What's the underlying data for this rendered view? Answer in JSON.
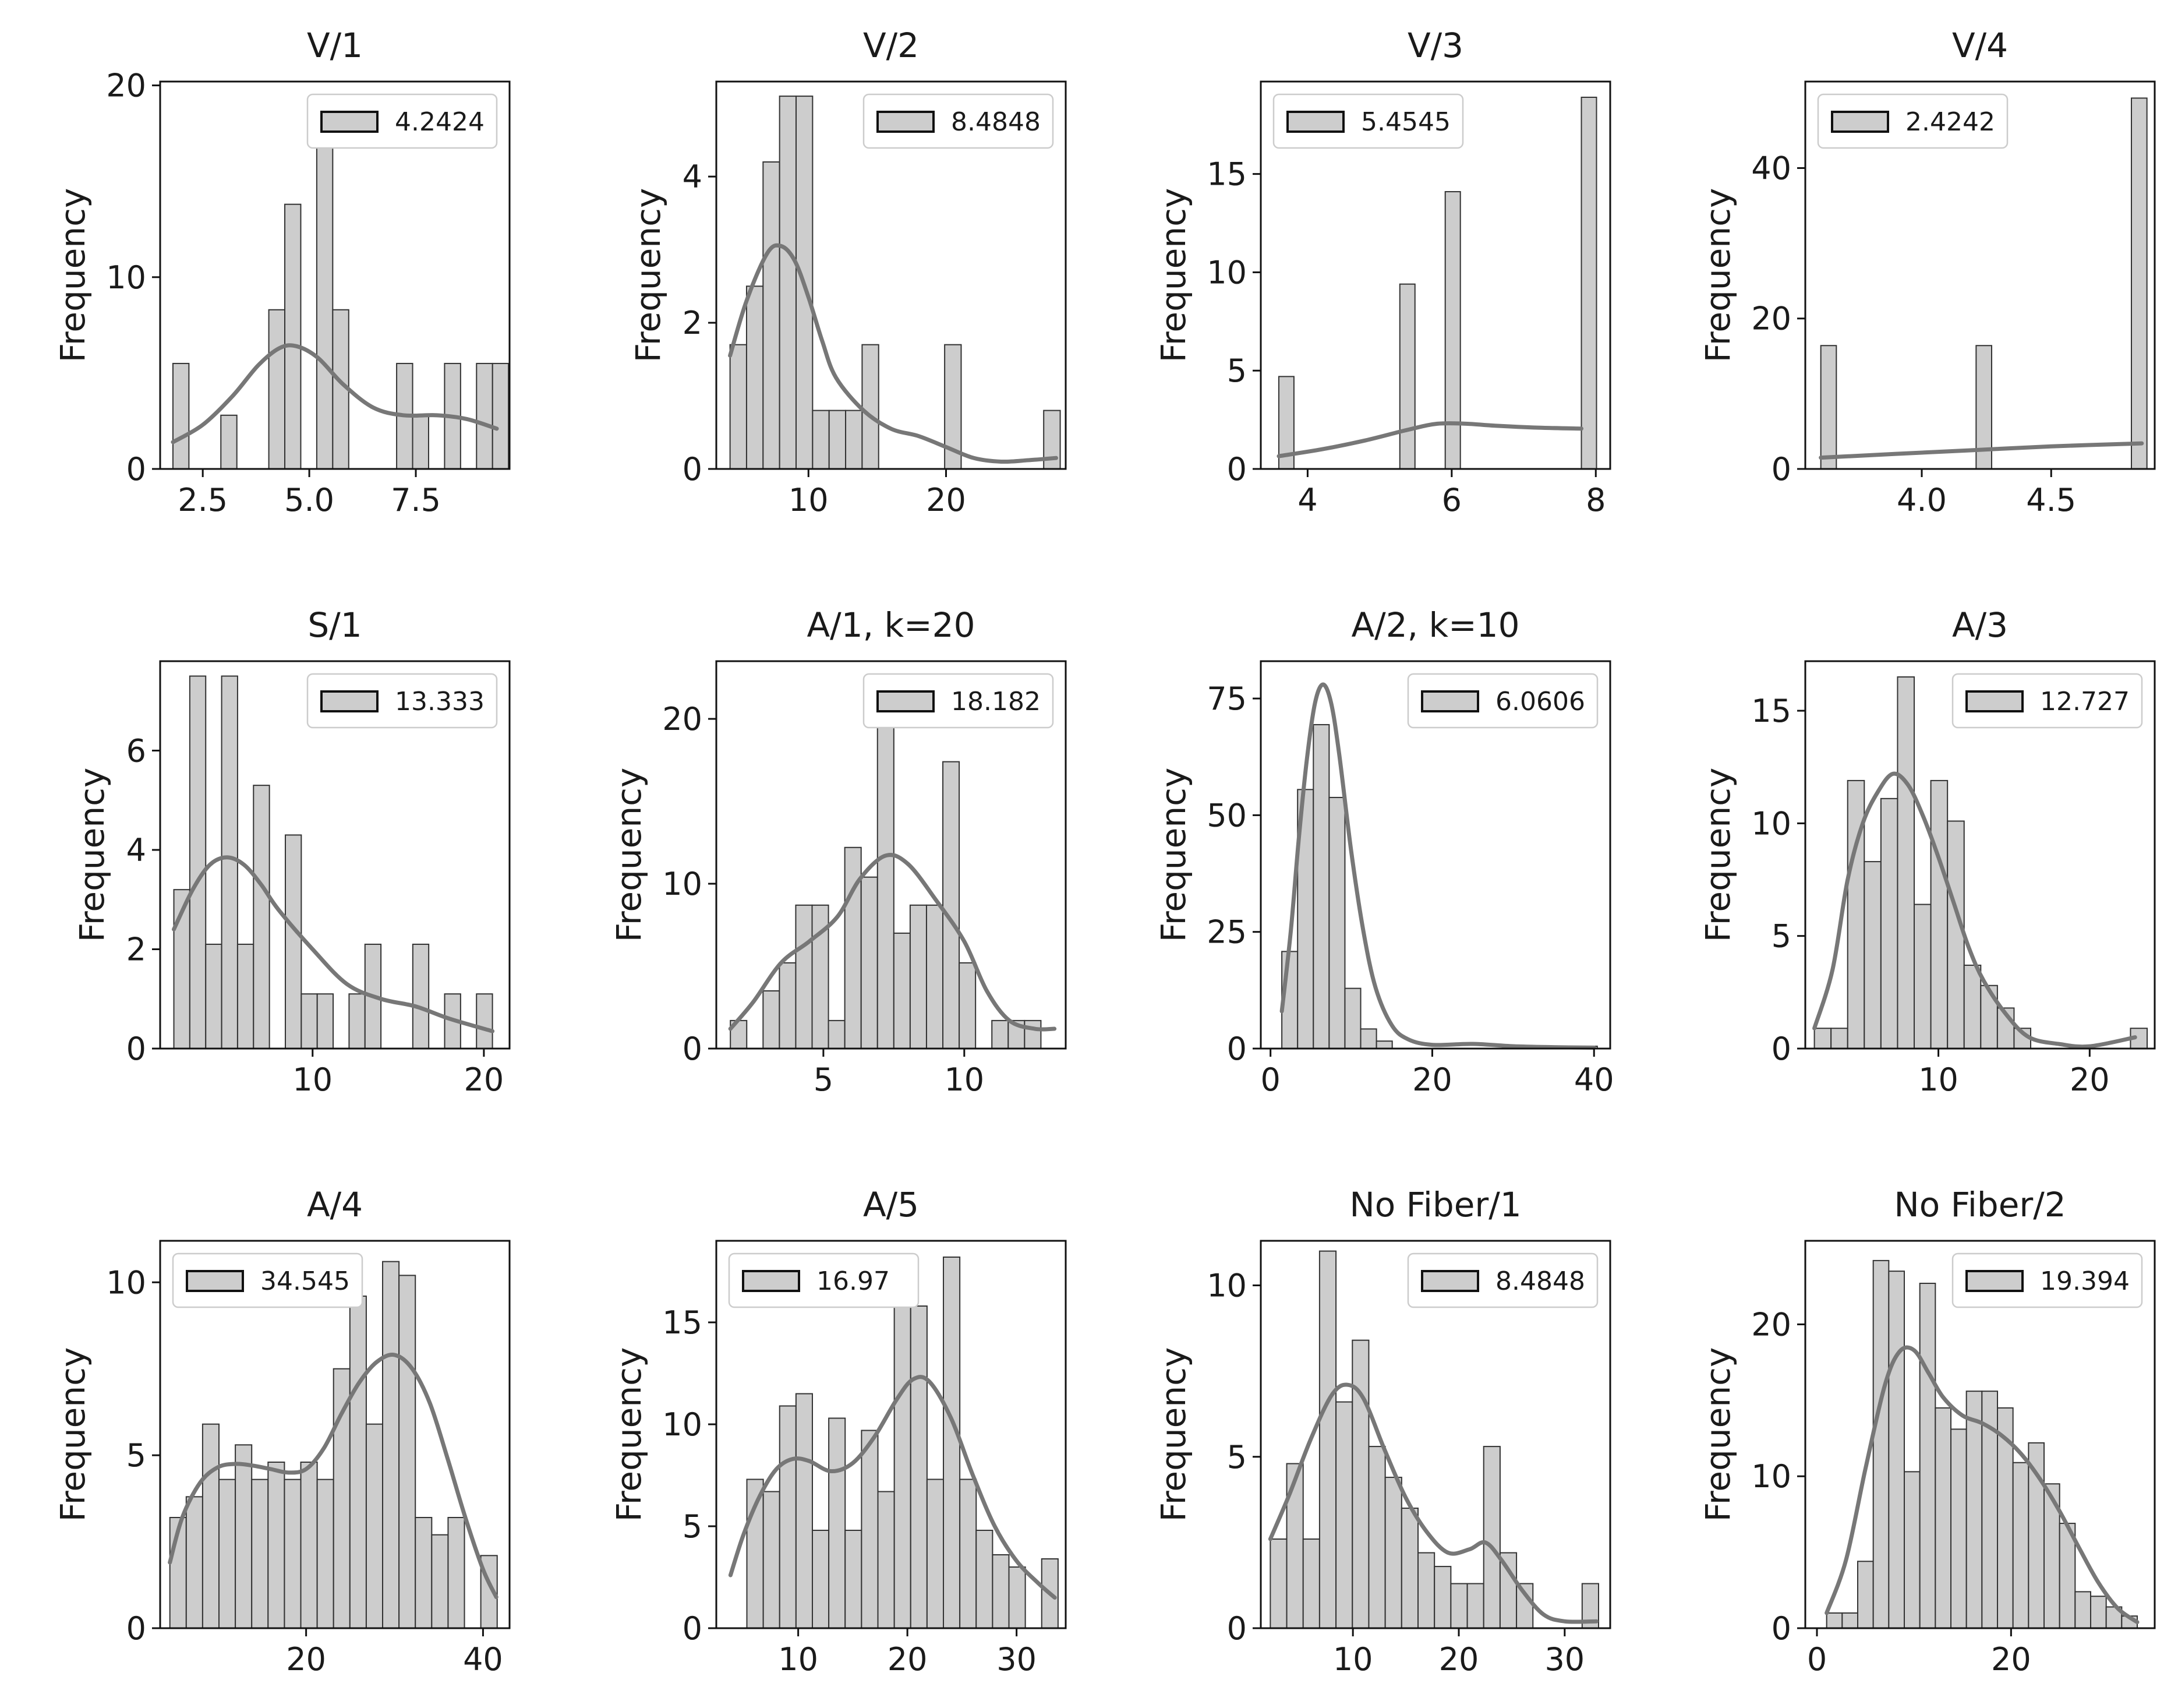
{
  "colors": {
    "bar_fill": "#cdcdcd",
    "bar_edge": "#333333",
    "kde": "#777777",
    "axis": "#111111",
    "legend_edge": "#cccccc"
  },
  "chart_data": [
    {
      "type": "bar",
      "title": "V/1",
      "xlabel": "",
      "ylabel": "Frequency",
      "xlim": [
        1.5,
        9.7
      ],
      "ylim": [
        0,
        20.2
      ],
      "xticks": [
        2.5,
        5.0,
        7.5
      ],
      "xtick_labels": [
        "2.5",
        "5.0",
        "7.5"
      ],
      "yticks": [
        0,
        10,
        20
      ],
      "ytick_labels": [
        "0",
        "10",
        "20"
      ],
      "legend_label": "4.2424",
      "legend_loc": "top-right",
      "bins": {
        "start": 1.8,
        "width": 0.375,
        "values": [
          5.5,
          0,
          0,
          2.8,
          0,
          0,
          8.3,
          13.8,
          0,
          19.3,
          8.3,
          0,
          0,
          0,
          5.5,
          2.8,
          0,
          5.5,
          0,
          5.5,
          5.5
        ]
      },
      "kde": {
        "x": [
          1.8,
          2.5,
          3.2,
          3.8,
          4.3,
          4.7,
          5.2,
          5.8,
          6.5,
          7.2,
          8.0,
          8.7,
          9.4
        ],
        "y": [
          1.4,
          2.3,
          3.8,
          5.4,
          6.3,
          6.4,
          5.8,
          4.4,
          3.2,
          2.8,
          2.8,
          2.6,
          2.1
        ]
      }
    },
    {
      "type": "bar",
      "title": "V/2",
      "xlabel": "",
      "ylabel": "Frequency",
      "xlim": [
        3.3,
        28.7
      ],
      "ylim": [
        0,
        5.3
      ],
      "xticks": [
        10,
        20
      ],
      "xtick_labels": [
        "10",
        "20"
      ],
      "yticks": [
        0,
        2,
        4
      ],
      "ytick_labels": [
        "0",
        "2",
        "4"
      ],
      "legend_label": "8.4848",
      "legend_loc": "top-right",
      "bins": {
        "start": 4.3,
        "width": 1.2,
        "values": [
          1.7,
          2.5,
          4.2,
          5.1,
          5.1,
          0.8,
          0.8,
          0.8,
          1.7,
          0,
          0,
          0,
          0,
          1.7,
          0,
          0,
          0,
          0,
          0,
          0.8
        ]
      },
      "kde": {
        "x": [
          4.3,
          5.5,
          7,
          8,
          9,
          10,
          11,
          12,
          14,
          16,
          18,
          20,
          22,
          24,
          26,
          28
        ],
        "y": [
          1.55,
          2.3,
          2.95,
          3.05,
          2.85,
          2.35,
          1.75,
          1.25,
          0.8,
          0.55,
          0.45,
          0.3,
          0.15,
          0.1,
          0.12,
          0.15
        ]
      }
    },
    {
      "type": "bar",
      "title": "V/3",
      "xlabel": "",
      "ylabel": "Frequency",
      "xlim": [
        3.35,
        8.2
      ],
      "ylim": [
        0,
        19.7
      ],
      "xticks": [
        4,
        6,
        8
      ],
      "xtick_labels": [
        "4",
        "6",
        "8"
      ],
      "yticks": [
        0,
        5,
        10,
        15
      ],
      "ytick_labels": [
        "0",
        "5",
        "10",
        "15"
      ],
      "legend_label": "5.4545",
      "legend_loc": "top-left",
      "bins": {
        "start": 3.6,
        "width": 0.21,
        "values": [
          4.7,
          0,
          0,
          0,
          0,
          0,
          0,
          0,
          9.4,
          0,
          0,
          14.1,
          0,
          0,
          0,
          0,
          0,
          0,
          0,
          0,
          18.9
        ]
      },
      "kde": {
        "x": [
          3.6,
          4.2,
          4.8,
          5.4,
          5.8,
          6.2,
          6.6,
          7.2,
          7.8
        ],
        "y": [
          0.65,
          1.0,
          1.45,
          2.0,
          2.3,
          2.3,
          2.2,
          2.1,
          2.05
        ]
      }
    },
    {
      "type": "bar",
      "title": "V/4",
      "xlabel": "",
      "ylabel": "Frequency",
      "xlim": [
        3.55,
        4.9
      ],
      "ylim": [
        0,
        51.5
      ],
      "xticks": [
        4.0,
        4.5
      ],
      "xtick_labels": [
        "4.0",
        "4.5"
      ],
      "yticks": [
        0,
        20,
        40
      ],
      "ytick_labels": [
        "0",
        "20",
        "40"
      ],
      "legend_label": "2.4242",
      "legend_loc": "top-left",
      "bins": {
        "start": 3.61,
        "width": 0.06,
        "values": [
          16.4,
          0,
          0,
          0,
          0,
          0,
          0,
          0,
          0,
          0,
          16.4,
          0,
          0,
          0,
          0,
          0,
          0,
          0,
          0,
          0,
          49.3
        ]
      },
      "kde": {
        "x": [
          3.61,
          3.9,
          4.2,
          4.5,
          4.85
        ],
        "y": [
          1.5,
          2.0,
          2.5,
          3.0,
          3.4
        ]
      }
    },
    {
      "type": "bar",
      "title": "S/1",
      "xlabel": "",
      "ylabel": "Frequency",
      "xlim": [
        1.1,
        21.5
      ],
      "ylim": [
        0,
        7.8
      ],
      "xticks": [
        10,
        20
      ],
      "xtick_labels": [
        "10",
        "20"
      ],
      "yticks": [
        0,
        2,
        4,
        6
      ],
      "ytick_labels": [
        "0",
        "2",
        "4",
        "6"
      ],
      "legend_label": "13.333",
      "legend_loc": "top-right",
      "bins": {
        "start": 1.9,
        "width": 0.93,
        "values": [
          3.2,
          7.5,
          2.1,
          7.5,
          2.1,
          5.3,
          0,
          4.3,
          1.1,
          1.1,
          0,
          1.1,
          2.1,
          0,
          0,
          2.1,
          0,
          1.1,
          0,
          1.1
        ]
      },
      "kde": {
        "x": [
          1.9,
          3,
          4,
          5,
          6,
          7,
          8,
          10,
          12,
          14,
          16,
          18,
          20.5
        ],
        "y": [
          2.4,
          3.2,
          3.7,
          3.85,
          3.7,
          3.3,
          2.8,
          2.0,
          1.3,
          1.0,
          0.85,
          0.6,
          0.35
        ]
      }
    },
    {
      "type": "bar",
      "title": "A/1, k=20",
      "xlabel": "",
      "ylabel": "Frequency",
      "xlim": [
        1.2,
        13.6
      ],
      "ylim": [
        0,
        23.5
      ],
      "xticks": [
        5,
        10
      ],
      "xtick_labels": [
        "5",
        "10"
      ],
      "yticks": [
        0,
        10,
        20
      ],
      "ytick_labels": [
        "0",
        "10",
        "20"
      ],
      "legend_label": "18.182",
      "legend_loc": "top-right",
      "bins": {
        "start": 1.7,
        "width": 0.58,
        "values": [
          1.7,
          0,
          3.5,
          5.2,
          8.7,
          8.7,
          1.7,
          12.2,
          10.4,
          20.8,
          7,
          8.7,
          8.7,
          17.4,
          5.2,
          0,
          1.7,
          1.7,
          1.7
        ]
      },
      "kde": {
        "x": [
          1.7,
          2.5,
          3.5,
          4.5,
          5.5,
          6.3,
          7.2,
          8,
          9,
          10,
          10.8,
          11.6,
          12.5,
          13.2
        ],
        "y": [
          1.2,
          2.8,
          5.2,
          6.5,
          8.0,
          10.3,
          11.7,
          11.2,
          9.0,
          6.5,
          3.5,
          1.7,
          1.2,
          1.2
        ]
      }
    },
    {
      "type": "bar",
      "title": "A/2, k=10",
      "xlabel": "",
      "ylabel": "Frequency",
      "xlim": [
        -1.2,
        42
      ],
      "ylim": [
        0,
        83
      ],
      "xticks": [
        0,
        20,
        40
      ],
      "xtick_labels": [
        "0",
        "20",
        "40"
      ],
      "yticks": [
        0,
        25,
        50,
        75
      ],
      "ytick_labels": [
        "0",
        "25",
        "50",
        "75"
      ],
      "legend_label": "6.0606",
      "legend_loc": "top-right",
      "bins": {
        "start": 1.4,
        "width": 1.95,
        "values": [
          20.8,
          55.5,
          69.4,
          53.8,
          12.9,
          4.2,
          1.6,
          0,
          0,
          0,
          0,
          0,
          0,
          0,
          0,
          0,
          0,
          0,
          0,
          0.5
        ]
      },
      "kde": {
        "x": [
          1.4,
          2.5,
          3.5,
          4.5,
          5.5,
          6.5,
          7.5,
          8.5,
          10,
          11.5,
          13,
          15,
          17,
          20,
          25,
          30,
          35,
          40
        ],
        "y": [
          8,
          25,
          45,
          62,
          74,
          78,
          74,
          63,
          42,
          25,
          13,
          5,
          2,
          0.8,
          1,
          0.5,
          0.3,
          0.2
        ]
      }
    },
    {
      "type": "bar",
      "title": "A/3",
      "xlabel": "",
      "ylabel": "Frequency",
      "xlim": [
        1.2,
        24.3
      ],
      "ylim": [
        0,
        17.2
      ],
      "xticks": [
        10,
        20
      ],
      "xtick_labels": [
        "10",
        "20"
      ],
      "yticks": [
        0,
        5,
        10,
        15
      ],
      "ytick_labels": [
        "0",
        "5",
        "10",
        "15"
      ],
      "legend_label": "12.727",
      "legend_loc": "top-right",
      "bins": {
        "start": 1.8,
        "width": 1.1,
        "values": [
          0.9,
          0.9,
          11.9,
          8.3,
          11.1,
          16.5,
          6.4,
          11.9,
          10.1,
          3.7,
          2.8,
          1.8,
          0.9,
          0,
          0,
          0,
          0,
          0,
          0,
          0.9
        ]
      },
      "kde": {
        "x": [
          1.8,
          3,
          4,
          5,
          6,
          7,
          8,
          9,
          10,
          11,
          12,
          13,
          14.5,
          16,
          18,
          20,
          23
        ],
        "y": [
          0.9,
          3.5,
          7.5,
          10,
          11.4,
          12.2,
          11.7,
          10.3,
          8.5,
          6.5,
          4.5,
          3.0,
          1.5,
          0.5,
          0.2,
          0.1,
          0.5
        ]
      }
    },
    {
      "type": "bar",
      "title": "A/4",
      "xlabel": "",
      "ylabel": "Frequency",
      "xlim": [
        3.5,
        43
      ],
      "ylim": [
        0,
        11.2
      ],
      "xticks": [
        20,
        40
      ],
      "xtick_labels": [
        "20",
        "40"
      ],
      "yticks": [
        0,
        5,
        10
      ],
      "ytick_labels": [
        "0",
        "5",
        "10"
      ],
      "legend_label": "34.545",
      "legend_loc": "top-left",
      "bins": {
        "start": 4.6,
        "width": 1.85,
        "values": [
          3.2,
          3.8,
          5.9,
          4.3,
          5.3,
          4.3,
          4.8,
          4.3,
          4.8,
          4.3,
          7.5,
          9.6,
          5.9,
          10.6,
          10.2,
          3.2,
          2.7,
          3.2,
          0,
          2.1
        ]
      },
      "kde": {
        "x": [
          4.6,
          6,
          8,
          10,
          12,
          14,
          16,
          18,
          20,
          22,
          24,
          26,
          28,
          30,
          32,
          34,
          36,
          38,
          40,
          41.5
        ],
        "y": [
          1.9,
          3.2,
          4.2,
          4.65,
          4.75,
          4.7,
          4.6,
          4.5,
          4.6,
          5.2,
          6.2,
          7.1,
          7.7,
          7.9,
          7.5,
          6.5,
          4.9,
          3.2,
          1.7,
          0.9
        ]
      }
    },
    {
      "type": "bar",
      "title": "A/5",
      "xlabel": "",
      "ylabel": "Frequency",
      "xlim": [
        2.5,
        34.5
      ],
      "ylim": [
        0,
        19
      ],
      "xticks": [
        10,
        20,
        30
      ],
      "xtick_labels": [
        "10",
        "20",
        "30"
      ],
      "yticks": [
        0,
        5,
        10,
        15
      ],
      "ytick_labels": [
        "0",
        "5",
        "10",
        "15"
      ],
      "legend_label": "16.97",
      "legend_loc": "top-left",
      "bins": {
        "start": 3.8,
        "width": 1.5,
        "values": [
          0,
          7.3,
          6.7,
          10.9,
          11.5,
          4.8,
          10.3,
          4.8,
          9.7,
          6.7,
          15.8,
          15.8,
          7.3,
          18.2,
          7.3,
          4.8,
          3.6,
          3.0,
          0,
          3.4
        ]
      },
      "kde": {
        "x": [
          3.8,
          5,
          6.5,
          8,
          9.5,
          11,
          13,
          15,
          17,
          19,
          20.5,
          22,
          24,
          26,
          28,
          30,
          32,
          33.5
        ],
        "y": [
          2.6,
          4.6,
          6.5,
          7.8,
          8.3,
          8.2,
          7.7,
          8.1,
          9.4,
          11.2,
          12.2,
          12.1,
          10.3,
          7.5,
          5.0,
          3.3,
          2.2,
          1.5
        ]
      }
    },
    {
      "type": "bar",
      "title": "No Fiber/1",
      "xlabel": "",
      "ylabel": "Frequency",
      "xlim": [
        1.3,
        34.3
      ],
      "ylim": [
        0,
        11.3
      ],
      "xticks": [
        10,
        20,
        30
      ],
      "xtick_labels": [
        "10",
        "20",
        "30"
      ],
      "yticks": [
        0,
        5,
        10
      ],
      "ytick_labels": [
        "0",
        "5",
        "10"
      ],
      "legend_label": "8.4848",
      "legend_loc": "top-right",
      "bins": {
        "start": 2.2,
        "width": 1.55,
        "values": [
          2.6,
          4.8,
          2.6,
          11.0,
          6.6,
          8.4,
          5.3,
          4.4,
          3.5,
          2.2,
          1.8,
          1.3,
          1.3,
          5.3,
          2.2,
          1.3,
          0,
          0,
          0,
          1.3
        ]
      },
      "kde": {
        "x": [
          2.2,
          4,
          6,
          8,
          9.5,
          11,
          13,
          15,
          17,
          19,
          21,
          22.5,
          24,
          26,
          28,
          30,
          33
        ],
        "y": [
          2.6,
          3.9,
          5.5,
          6.8,
          7.1,
          6.7,
          5.2,
          3.8,
          2.8,
          2.2,
          2.3,
          2.5,
          2.0,
          1.1,
          0.4,
          0.2,
          0.2
        ]
      }
    },
    {
      "type": "bar",
      "title": "No Fiber/2",
      "xlabel": "",
      "ylabel": "Frequency",
      "xlim": [
        -1.2,
        34.8
      ],
      "ylim": [
        0,
        25.5
      ],
      "xticks": [
        0,
        20
      ],
      "xtick_labels": [
        "0",
        "20"
      ],
      "yticks": [
        0,
        10,
        20
      ],
      "ytick_labels": [
        "0",
        "10",
        "20"
      ],
      "legend_label": "19.394",
      "legend_loc": "top-right",
      "bins": {
        "start": 1.0,
        "width": 1.6,
        "values": [
          1.0,
          1.0,
          4.4,
          24.2,
          23.5,
          10.3,
          22.7,
          14.5,
          13.1,
          15.6,
          15.6,
          14.5,
          10.9,
          12.2,
          9.5,
          6.9,
          2.4,
          2.1,
          1.4,
          0.8
        ]
      },
      "kde": {
        "x": [
          1,
          3,
          5,
          7,
          8.5,
          10,
          11.5,
          13,
          15,
          17,
          19,
          21,
          23,
          25,
          27,
          29,
          31,
          33
        ],
        "y": [
          1.0,
          4.5,
          10.5,
          16,
          18.2,
          18.3,
          16.8,
          15.2,
          14,
          13.5,
          12.7,
          11.5,
          9.8,
          7.7,
          5.3,
          3.0,
          1.3,
          0.4
        ]
      }
    }
  ]
}
